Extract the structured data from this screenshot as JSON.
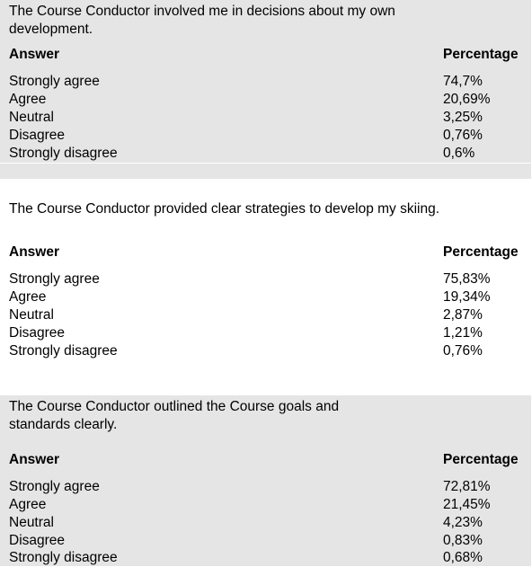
{
  "header": {
    "answer": "Answer",
    "percentage": "Percentage"
  },
  "questions": [
    {
      "text": "The Course Conductor involved me in decisions about my own development.",
      "rows": [
        {
          "answer": "Strongly agree",
          "percentage": "74,7%"
        },
        {
          "answer": "Agree",
          "percentage": "20,69%"
        },
        {
          "answer": "Neutral",
          "percentage": "3,25%"
        },
        {
          "answer": "Disagree",
          "percentage": "0,76%"
        },
        {
          "answer": "Strongly disagree",
          "percentage": "0,6%"
        }
      ]
    },
    {
      "text": "The Course Conductor provided clear strategies to develop my skiing.",
      "rows": [
        {
          "answer": "Strongly agree",
          "percentage": "75,83%"
        },
        {
          "answer": "Agree",
          "percentage": "19,34%"
        },
        {
          "answer": "Neutral",
          "percentage": "2,87%"
        },
        {
          "answer": "Disagree",
          "percentage": "1,21%"
        },
        {
          "answer": "Strongly disagree",
          "percentage": "0,76%"
        }
      ]
    },
    {
      "text": "The Course Conductor outlined the Course goals and standards clearly.",
      "rows": [
        {
          "answer": "Strongly agree",
          "percentage": "72,81%"
        },
        {
          "answer": "Agree",
          "percentage": "21,45%"
        },
        {
          "answer": "Neutral",
          "percentage": "4,23%"
        },
        {
          "answer": "Disagree",
          "percentage": "0,83%"
        },
        {
          "answer": "Strongly disagree",
          "percentage": "0,68%"
        }
      ]
    }
  ],
  "colors": {
    "shaded_background": "#e6e5e6",
    "text": "#000000"
  }
}
